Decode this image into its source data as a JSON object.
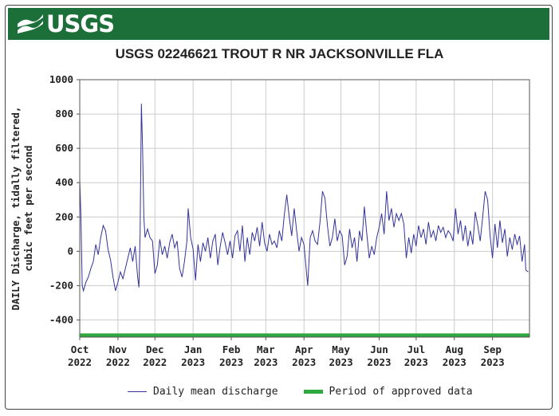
{
  "header": {
    "logo_text": "USGS"
  },
  "chart_data": {
    "type": "line",
    "title": "USGS 02246621 TROUT R NR JACKSONVILLE FLA",
    "ylabel_line1": "DAILY Discharge, tidally filtered,",
    "ylabel_line2": "cubic feet per second",
    "ylim": [
      -500,
      1000
    ],
    "yticks": [
      1000,
      800,
      600,
      400,
      200,
      0,
      -200,
      -400
    ],
    "grid": true,
    "x_start": "2022-10-01",
    "x_end": "2023-09-30",
    "month_ticks": [
      {
        "top": "Oct",
        "bottom": "2022"
      },
      {
        "top": "Nov",
        "bottom": "2022"
      },
      {
        "top": "Dec",
        "bottom": "2022"
      },
      {
        "top": "Jan",
        "bottom": "2023"
      },
      {
        "top": "Feb",
        "bottom": "2023"
      },
      {
        "top": "Mar",
        "bottom": "2023"
      },
      {
        "top": "Apr",
        "bottom": "2023"
      },
      {
        "top": "May",
        "bottom": "2023"
      },
      {
        "top": "Jun",
        "bottom": "2023"
      },
      {
        "top": "Jul",
        "bottom": "2023"
      },
      {
        "top": "Aug",
        "bottom": "2023"
      },
      {
        "top": "Sep",
        "bottom": "2023"
      }
    ],
    "legend": {
      "position": "bottom",
      "items": [
        "Daily mean discharge",
        "Period of approved data"
      ]
    },
    "series": [
      {
        "name": "Daily mean discharge",
        "color": "#33339a",
        "points": [
          [
            "2022-10-01",
            420
          ],
          [
            "2022-10-02",
            200
          ],
          [
            "2022-10-03",
            -200
          ],
          [
            "2022-10-04",
            -230
          ],
          [
            "2022-10-06",
            -180
          ],
          [
            "2022-10-08",
            -150
          ],
          [
            "2022-10-10",
            -100
          ],
          [
            "2022-10-12",
            -60
          ],
          [
            "2022-10-14",
            40
          ],
          [
            "2022-10-16",
            -20
          ],
          [
            "2022-10-18",
            80
          ],
          [
            "2022-10-20",
            150
          ],
          [
            "2022-10-22",
            120
          ],
          [
            "2022-10-24",
            10
          ],
          [
            "2022-10-26",
            -50
          ],
          [
            "2022-10-28",
            -150
          ],
          [
            "2022-10-30",
            -230
          ],
          [
            "2022-11-01",
            -180
          ],
          [
            "2022-11-03",
            -120
          ],
          [
            "2022-11-05",
            -160
          ],
          [
            "2022-11-07",
            -100
          ],
          [
            "2022-11-09",
            -40
          ],
          [
            "2022-11-11",
            20
          ],
          [
            "2022-11-13",
            -60
          ],
          [
            "2022-11-15",
            30
          ],
          [
            "2022-11-17",
            -150
          ],
          [
            "2022-11-18",
            -210
          ],
          [
            "2022-11-19",
            100
          ],
          [
            "2022-11-20",
            860
          ],
          [
            "2022-11-21",
            600
          ],
          [
            "2022-11-22",
            200
          ],
          [
            "2022-11-23",
            80
          ],
          [
            "2022-11-25",
            130
          ],
          [
            "2022-11-27",
            80
          ],
          [
            "2022-11-29",
            60
          ],
          [
            "2022-12-01",
            -130
          ],
          [
            "2022-12-03",
            -80
          ],
          [
            "2022-12-05",
            70
          ],
          [
            "2022-12-07",
            -20
          ],
          [
            "2022-12-09",
            30
          ],
          [
            "2022-12-11",
            -40
          ],
          [
            "2022-12-13",
            50
          ],
          [
            "2022-12-15",
            100
          ],
          [
            "2022-12-17",
            20
          ],
          [
            "2022-12-19",
            60
          ],
          [
            "2022-12-21",
            -100
          ],
          [
            "2022-12-23",
            -150
          ],
          [
            "2022-12-25",
            -60
          ],
          [
            "2022-12-27",
            60
          ],
          [
            "2022-12-28",
            250
          ],
          [
            "2022-12-30",
            80
          ],
          [
            "2023-01-01",
            10
          ],
          [
            "2023-01-03",
            -170
          ],
          [
            "2023-01-05",
            40
          ],
          [
            "2023-01-07",
            -60
          ],
          [
            "2023-01-09",
            50
          ],
          [
            "2023-01-11",
            0
          ],
          [
            "2023-01-13",
            80
          ],
          [
            "2023-01-15",
            -40
          ],
          [
            "2023-01-17",
            60
          ],
          [
            "2023-01-19",
            100
          ],
          [
            "2023-01-21",
            -80
          ],
          [
            "2023-01-23",
            30
          ],
          [
            "2023-01-25",
            110
          ],
          [
            "2023-01-27",
            50
          ],
          [
            "2023-01-29",
            -20
          ],
          [
            "2023-01-31",
            60
          ],
          [
            "2023-02-02",
            -40
          ],
          [
            "2023-02-04",
            90
          ],
          [
            "2023-02-06",
            120
          ],
          [
            "2023-02-08",
            0
          ],
          [
            "2023-02-10",
            150
          ],
          [
            "2023-02-12",
            -60
          ],
          [
            "2023-02-14",
            80
          ],
          [
            "2023-02-16",
            -20
          ],
          [
            "2023-02-18",
            110
          ],
          [
            "2023-02-20",
            60
          ],
          [
            "2023-02-22",
            140
          ],
          [
            "2023-02-24",
            30
          ],
          [
            "2023-02-26",
            170
          ],
          [
            "2023-02-28",
            50
          ],
          [
            "2023-03-02",
            0
          ],
          [
            "2023-03-04",
            100
          ],
          [
            "2023-03-06",
            40
          ],
          [
            "2023-03-08",
            60
          ],
          [
            "2023-03-10",
            20
          ],
          [
            "2023-03-12",
            120
          ],
          [
            "2023-03-14",
            60
          ],
          [
            "2023-03-16",
            210
          ],
          [
            "2023-03-18",
            330
          ],
          [
            "2023-03-20",
            200
          ],
          [
            "2023-03-22",
            90
          ],
          [
            "2023-03-24",
            250
          ],
          [
            "2023-03-26",
            120
          ],
          [
            "2023-03-28",
            0
          ],
          [
            "2023-03-30",
            80
          ],
          [
            "2023-04-01",
            40
          ],
          [
            "2023-04-03",
            -120
          ],
          [
            "2023-04-04",
            -200
          ],
          [
            "2023-04-06",
            80
          ],
          [
            "2023-04-08",
            120
          ],
          [
            "2023-04-10",
            60
          ],
          [
            "2023-04-12",
            40
          ],
          [
            "2023-04-14",
            170
          ],
          [
            "2023-04-16",
            350
          ],
          [
            "2023-04-18",
            310
          ],
          [
            "2023-04-20",
            150
          ],
          [
            "2023-04-22",
            30
          ],
          [
            "2023-04-24",
            80
          ],
          [
            "2023-04-26",
            190
          ],
          [
            "2023-04-28",
            60
          ],
          [
            "2023-04-30",
            120
          ],
          [
            "2023-05-02",
            90
          ],
          [
            "2023-05-04",
            -80
          ],
          [
            "2023-05-06",
            -30
          ],
          [
            "2023-05-08",
            130
          ],
          [
            "2023-05-10",
            20
          ],
          [
            "2023-05-12",
            80
          ],
          [
            "2023-05-14",
            -60
          ],
          [
            "2023-05-16",
            120
          ],
          [
            "2023-05-18",
            60
          ],
          [
            "2023-05-20",
            260
          ],
          [
            "2023-05-22",
            100
          ],
          [
            "2023-05-24",
            -40
          ],
          [
            "2023-05-26",
            30
          ],
          [
            "2023-05-28",
            -20
          ],
          [
            "2023-05-30",
            80
          ],
          [
            "2023-06-01",
            140
          ],
          [
            "2023-06-03",
            220
          ],
          [
            "2023-06-05",
            100
          ],
          [
            "2023-06-07",
            350
          ],
          [
            "2023-06-09",
            180
          ],
          [
            "2023-06-11",
            250
          ],
          [
            "2023-06-13",
            140
          ],
          [
            "2023-06-15",
            220
          ],
          [
            "2023-06-17",
            180
          ],
          [
            "2023-06-19",
            220
          ],
          [
            "2023-06-21",
            160
          ],
          [
            "2023-06-23",
            -40
          ],
          [
            "2023-06-25",
            80
          ],
          [
            "2023-06-27",
            -10
          ],
          [
            "2023-06-29",
            100
          ],
          [
            "2023-07-01",
            30
          ],
          [
            "2023-07-03",
            150
          ],
          [
            "2023-07-05",
            80
          ],
          [
            "2023-07-07",
            130
          ],
          [
            "2023-07-09",
            40
          ],
          [
            "2023-07-11",
            170
          ],
          [
            "2023-07-13",
            80
          ],
          [
            "2023-07-15",
            120
          ],
          [
            "2023-07-17",
            60
          ],
          [
            "2023-07-19",
            150
          ],
          [
            "2023-07-21",
            110
          ],
          [
            "2023-07-23",
            140
          ],
          [
            "2023-07-25",
            80
          ],
          [
            "2023-07-27",
            120
          ],
          [
            "2023-07-29",
            100
          ],
          [
            "2023-07-31",
            60
          ],
          [
            "2023-08-02",
            250
          ],
          [
            "2023-08-04",
            100
          ],
          [
            "2023-08-06",
            180
          ],
          [
            "2023-08-08",
            60
          ],
          [
            "2023-08-10",
            150
          ],
          [
            "2023-08-12",
            30
          ],
          [
            "2023-08-14",
            120
          ],
          [
            "2023-08-16",
            40
          ],
          [
            "2023-08-18",
            230
          ],
          [
            "2023-08-20",
            150
          ],
          [
            "2023-08-22",
            60
          ],
          [
            "2023-08-24",
            200
          ],
          [
            "2023-08-26",
            350
          ],
          [
            "2023-08-28",
            300
          ],
          [
            "2023-08-30",
            90
          ],
          [
            "2023-09-01",
            -40
          ],
          [
            "2023-09-03",
            160
          ],
          [
            "2023-09-05",
            20
          ],
          [
            "2023-09-07",
            180
          ],
          [
            "2023-09-09",
            50
          ],
          [
            "2023-09-11",
            130
          ],
          [
            "2023-09-13",
            -30
          ],
          [
            "2023-09-15",
            80
          ],
          [
            "2023-09-17",
            10
          ],
          [
            "2023-09-19",
            100
          ],
          [
            "2023-09-21",
            40
          ],
          [
            "2023-09-23",
            90
          ],
          [
            "2023-09-25",
            -60
          ],
          [
            "2023-09-27",
            40
          ],
          [
            "2023-09-28",
            -110
          ],
          [
            "2023-09-30",
            -120
          ]
        ]
      },
      {
        "name": "Period of approved data",
        "color": "#2fa83f",
        "range": [
          "2022-10-01",
          "2023-09-30"
        ],
        "value": -490
      }
    ]
  }
}
